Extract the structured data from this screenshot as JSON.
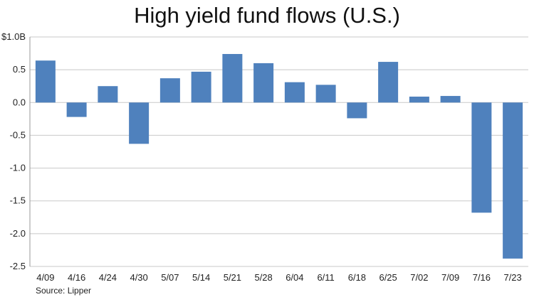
{
  "chart_data": {
    "type": "bar",
    "title": "High yield fund flows (U.S.)",
    "xlabel": "",
    "ylabel": "",
    "unit_label": "$1.0B",
    "source": "Source: Lipper",
    "categories": [
      "4/09",
      "4/16",
      "4/24",
      "4/30",
      "5/07",
      "5/14",
      "5/21",
      "5/28",
      "6/04",
      "6/11",
      "6/18",
      "6/25",
      "7/02",
      "7/09",
      "7/16",
      "7/23"
    ],
    "values": [
      0.64,
      -0.22,
      0.25,
      -0.63,
      0.37,
      0.47,
      0.74,
      0.6,
      0.31,
      0.27,
      -0.24,
      0.62,
      0.09,
      0.1,
      -1.68,
      -2.38
    ],
    "ylim": [
      -2.5,
      1.0
    ],
    "yticks": [
      1.0,
      0.5,
      0.0,
      -0.5,
      -1.0,
      -1.5,
      -2.0,
      -2.5
    ],
    "ytick_labels": [
      "$1.0B",
      "0.5",
      "0.0",
      "-0.5",
      "-1.0",
      "-1.5",
      "-2.0",
      "-2.5"
    ],
    "grid": true,
    "bar_color": "#4f81bd",
    "grid_color": "#c8c8c8"
  }
}
